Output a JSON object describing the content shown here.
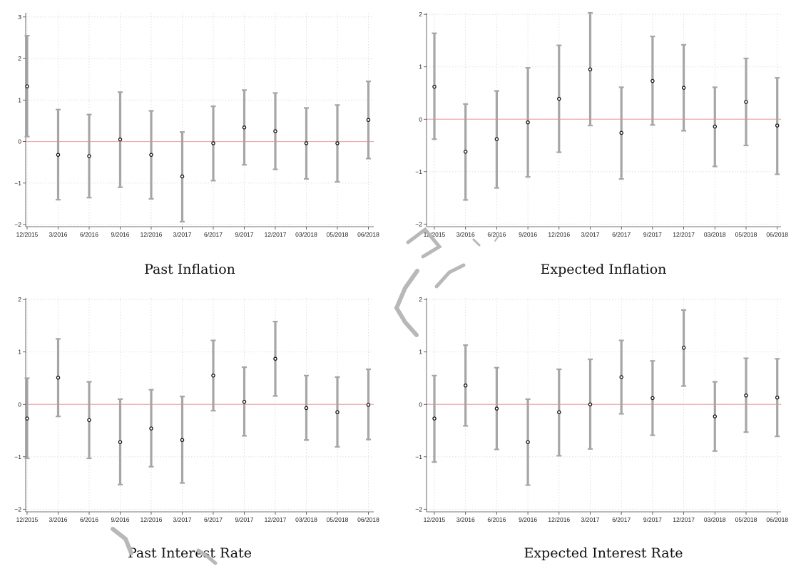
{
  "colors": {
    "errorbar": "#a6a6a6",
    "point": "#111111",
    "zero_line": "#f2aaaa",
    "grid": "#d9d9d9",
    "axis": "#444444",
    "watermark": "#b8b8b8"
  },
  "chart_data": [
    {
      "type": "errorbar",
      "title": "Past Inflation",
      "categories": [
        "12/2015",
        "3/2016",
        "6/2016",
        "9/2016",
        "12/2016",
        "3/2017",
        "6/2017",
        "9/2017",
        "12/2017",
        "03/2018",
        "05/2018",
        "06/2018"
      ],
      "estimates": [
        1.33,
        -0.32,
        -0.35,
        0.05,
        -0.32,
        -0.84,
        -0.04,
        0.34,
        0.25,
        -0.04,
        -0.04,
        0.52
      ],
      "lower": [
        0.12,
        -1.4,
        -1.35,
        -1.1,
        -1.38,
        -1.93,
        -0.94,
        -0.56,
        -0.67,
        -0.9,
        -0.97,
        -0.41
      ],
      "upper": [
        2.55,
        0.77,
        0.65,
        1.19,
        0.74,
        0.23,
        0.85,
        1.24,
        1.17,
        0.81,
        0.88,
        1.45
      ],
      "yticks": [
        -2,
        -1,
        0,
        1,
        2,
        3
      ],
      "ylim": [
        -2.05,
        3.1
      ],
      "reference_line": 0,
      "grid": true
    },
    {
      "type": "errorbar",
      "title": "Expected Inflation",
      "categories": [
        "12/2015",
        "3/2016",
        "6/2016",
        "9/2016",
        "12/2016",
        "3/2017",
        "6/2017",
        "9/2017",
        "12/2017",
        "03/2018",
        "05/2018",
        "06/2018"
      ],
      "estimates": [
        0.62,
        -0.62,
        -0.38,
        -0.06,
        0.39,
        0.95,
        -0.26,
        0.73,
        0.6,
        -0.14,
        0.33,
        -0.12
      ],
      "lower": [
        -0.38,
        -1.54,
        -1.31,
        -1.1,
        -0.63,
        -0.12,
        -1.14,
        -0.11,
        -0.22,
        -0.9,
        -0.5,
        -1.05
      ],
      "upper": [
        1.64,
        0.29,
        0.54,
        0.98,
        1.41,
        2.03,
        0.61,
        1.58,
        1.42,
        0.61,
        1.16,
        0.79
      ],
      "yticks": [
        -2,
        -1,
        0,
        1,
        2
      ],
      "ylim": [
        -2.05,
        2.03
      ],
      "reference_line": 0,
      "grid": true
    },
    {
      "type": "errorbar",
      "title": "Past Interest Rate",
      "categories": [
        "12/2015",
        "3/2016",
        "6/2016",
        "9/2016",
        "12/2016",
        "3/2017",
        "6/2017",
        "9/2017",
        "12/2017",
        "03/2018",
        "05/2018",
        "06/2018"
      ],
      "estimates": [
        -0.27,
        0.51,
        -0.3,
        -0.72,
        -0.46,
        -0.68,
        0.55,
        0.05,
        0.87,
        -0.07,
        -0.15,
        -0.01
      ],
      "lower": [
        -1.03,
        -0.23,
        -1.03,
        -1.53,
        -1.19,
        -1.5,
        -0.12,
        -0.6,
        0.16,
        -0.68,
        -0.81,
        -0.67
      ],
      "upper": [
        0.5,
        1.25,
        0.43,
        0.1,
        0.28,
        0.15,
        1.22,
        0.71,
        1.58,
        0.55,
        0.52,
        0.67
      ],
      "yticks": [
        -2,
        -1,
        0,
        1,
        2
      ],
      "ylim": [
        -2.05,
        2.03
      ],
      "reference_line": 0,
      "grid": true
    },
    {
      "type": "errorbar",
      "title": "Expected Interest Rate",
      "categories": [
        "12/2015",
        "3/2016",
        "6/2016",
        "9/2016",
        "12/2016",
        "3/2017",
        "6/2017",
        "9/2017",
        "12/2017",
        "03/2018",
        "05/2018",
        "06/2018"
      ],
      "estimates": [
        -0.27,
        0.36,
        -0.08,
        -0.72,
        -0.15,
        0.0,
        0.52,
        0.12,
        1.08,
        -0.23,
        0.17,
        0.13
      ],
      "lower": [
        -1.1,
        -0.41,
        -0.86,
        -1.54,
        -0.98,
        -0.85,
        -0.18,
        -0.59,
        0.35,
        -0.89,
        -0.53,
        -0.61
      ],
      "upper": [
        0.55,
        1.13,
        0.7,
        0.1,
        0.67,
        0.86,
        1.22,
        0.83,
        1.8,
        0.43,
        0.88,
        0.87
      ],
      "yticks": [
        -2,
        -1,
        0,
        1,
        2
      ],
      "ylim": [
        -2.05,
        2.03
      ],
      "reference_line": 0,
      "grid": true
    }
  ]
}
